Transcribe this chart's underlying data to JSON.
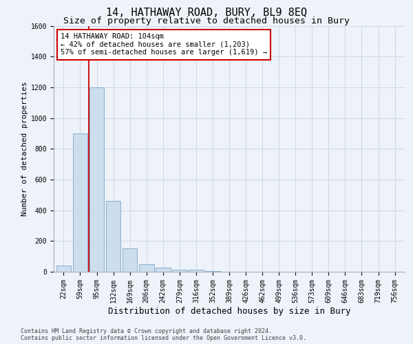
{
  "title": "14, HATHAWAY ROAD, BURY, BL9 8EQ",
  "subtitle": "Size of property relative to detached houses in Bury",
  "xlabel": "Distribution of detached houses by size in Bury",
  "ylabel": "Number of detached properties",
  "categories": [
    "22sqm",
    "59sqm",
    "95sqm",
    "132sqm",
    "169sqm",
    "206sqm",
    "242sqm",
    "279sqm",
    "316sqm",
    "352sqm",
    "389sqm",
    "426sqm",
    "462sqm",
    "499sqm",
    "536sqm",
    "573sqm",
    "609sqm",
    "646sqm",
    "683sqm",
    "719sqm",
    "756sqm"
  ],
  "values": [
    40,
    900,
    1200,
    460,
    150,
    50,
    25,
    15,
    12,
    5,
    0,
    0,
    0,
    0,
    0,
    0,
    0,
    0,
    0,
    0,
    0
  ],
  "bar_color": "#ccdded",
  "bar_edge_color": "#88aece",
  "grid_color": "#c8d4e4",
  "background_color": "#eef2f9",
  "red_line_x": 1.5,
  "annotation_text": "14 HATHAWAY ROAD: 104sqm\n← 42% of detached houses are smaller (1,203)\n57% of semi-detached houses are larger (1,619) →",
  "annotation_box_facecolor": "#ffffff",
  "annotation_box_edgecolor": "#cc0000",
  "ylim": [
    0,
    1600
  ],
  "yticks": [
    0,
    200,
    400,
    600,
    800,
    1000,
    1200,
    1400,
    1600
  ],
  "footer": "Contains HM Land Registry data © Crown copyright and database right 2024.\nContains public sector information licensed under the Open Government Licence v3.0.",
  "title_fontsize": 11,
  "subtitle_fontsize": 9.5,
  "xlabel_fontsize": 9,
  "ylabel_fontsize": 8,
  "tick_fontsize": 7,
  "annotation_fontsize": 7.5,
  "footer_fontsize": 6
}
